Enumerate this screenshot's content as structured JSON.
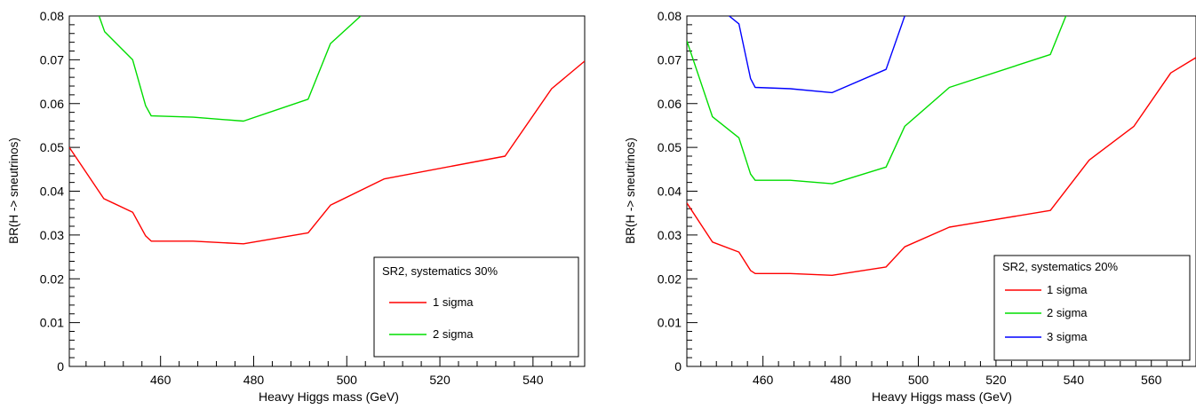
{
  "chart_data": [
    {
      "type": "line",
      "xlabel": "Heavy Higgs mass (GeV)",
      "ylabel": "BR(H -> sneutrinos)",
      "xlim": [
        440.4,
        551.1
      ],
      "ylim": [
        0,
        0.08
      ],
      "x_ticks": [
        "460",
        "480",
        "500",
        "520",
        "540"
      ],
      "y_ticks": [
        "0",
        "0.01",
        "0.02",
        "0.03",
        "0.04",
        "0.05",
        "0.06",
        "0.07",
        "0.08"
      ],
      "legend_title": "SR2, systematics 30%",
      "legend_position": "bottom-right",
      "series": [
        {
          "name": "1 sigma",
          "color": "#ff0000",
          "x": [
            440.4,
            447.8,
            454.0,
            456.8,
            458.0,
            467.0,
            477.8,
            491.7,
            496.5,
            508.0,
            534.0,
            544.0,
            551.1
          ],
          "y": [
            0.05,
            0.0383,
            0.0352,
            0.0298,
            0.0286,
            0.0286,
            0.028,
            0.0305,
            0.0368,
            0.0428,
            0.048,
            0.0634,
            0.0697
          ]
        },
        {
          "name": "2 sigma",
          "color": "#00dd00",
          "x": [
            446.8,
            448.0,
            454.0,
            456.8,
            458.0,
            467.0,
            477.8,
            491.7,
            496.5,
            503.0
          ],
          "y": [
            0.08,
            0.0764,
            0.07,
            0.0595,
            0.0572,
            0.0569,
            0.056,
            0.061,
            0.0737,
            0.08
          ]
        }
      ]
    },
    {
      "type": "line",
      "xlabel": "Heavy Higgs mass (GeV)",
      "ylabel": "BR(H -> sneutrinos)",
      "xlim": [
        440.4,
        571.5
      ],
      "ylim": [
        0,
        0.08
      ],
      "x_ticks": [
        "460",
        "480",
        "500",
        "520",
        "540",
        "560"
      ],
      "y_ticks": [
        "0",
        "0.01",
        "0.02",
        "0.03",
        "0.04",
        "0.05",
        "0.06",
        "0.07",
        "0.08"
      ],
      "legend_title": "SR2, systematics 20%",
      "legend_position": "bottom-right",
      "series": [
        {
          "name": "1 sigma",
          "color": "#ff0000",
          "x": [
            440.4,
            447.0,
            453.8,
            456.8,
            458.0,
            467.0,
            477.8,
            491.7,
            496.5,
            508.0,
            534.0,
            544.0,
            555.5,
            565.0,
            571.5
          ],
          "y": [
            0.0373,
            0.0284,
            0.0261,
            0.0219,
            0.0212,
            0.0212,
            0.0208,
            0.0227,
            0.0273,
            0.0318,
            0.0356,
            0.0471,
            0.0548,
            0.067,
            0.0705
          ]
        },
        {
          "name": "2 sigma",
          "color": "#00dd00",
          "x": [
            440.4,
            447.0,
            453.8,
            456.8,
            458.0,
            467.0,
            477.8,
            491.7,
            496.5,
            508.0,
            534.0,
            538.0
          ],
          "y": [
            0.0743,
            0.057,
            0.0522,
            0.0439,
            0.0425,
            0.0425,
            0.0417,
            0.0455,
            0.0548,
            0.0637,
            0.0712,
            0.08
          ]
        },
        {
          "name": "3 sigma",
          "color": "#0000ff",
          "x": [
            451.3,
            453.8,
            456.8,
            458.0,
            467.0,
            477.8,
            491.7,
            496.5
          ],
          "y": [
            0.08,
            0.0782,
            0.0657,
            0.0637,
            0.0634,
            0.0625,
            0.0678,
            0.08
          ]
        }
      ]
    }
  ]
}
